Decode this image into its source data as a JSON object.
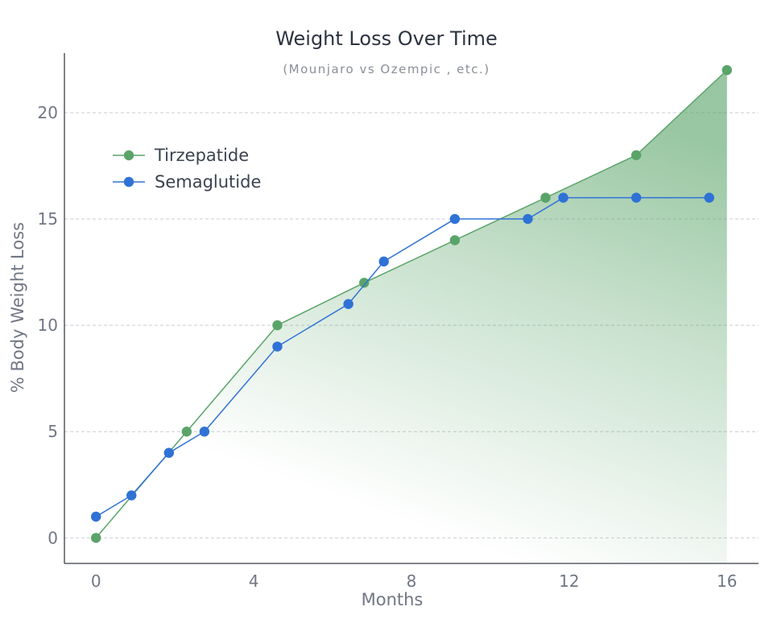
{
  "chart_data": {
    "type": "line",
    "title": "Weight Loss Over Time",
    "subtitle": "(Mounjaro vs Ozempic , etc.)",
    "xlabel": "Months",
    "ylabel": "% Body Weight Loss",
    "xlim": [
      -0.8,
      16.8
    ],
    "ylim": [
      -1.2,
      22.8
    ],
    "xticks": [
      0,
      4,
      8,
      12,
      16
    ],
    "yticks": [
      0,
      5,
      10,
      15,
      20
    ],
    "grid": "horizontal dashed",
    "legend_position": "top-left",
    "series": [
      {
        "name": "Tirzepatide",
        "color": "#5aa469",
        "fill": "gradient-green",
        "x": [
          0,
          2.3,
          4.6,
          6.8,
          9.1,
          11.4,
          13.7,
          16
        ],
        "y": [
          0,
          5,
          10,
          12,
          14,
          16,
          18,
          22
        ]
      },
      {
        "name": "Semaglutide",
        "color": "#2f72d6",
        "x": [
          0,
          0.9,
          1.85,
          2.75,
          4.6,
          6.4,
          7.3,
          9.1,
          10.95,
          11.85,
          13.7,
          15.55
        ],
        "y": [
          1,
          2,
          4,
          5,
          9,
          11,
          13,
          15,
          15,
          16,
          16,
          16
        ]
      }
    ]
  }
}
